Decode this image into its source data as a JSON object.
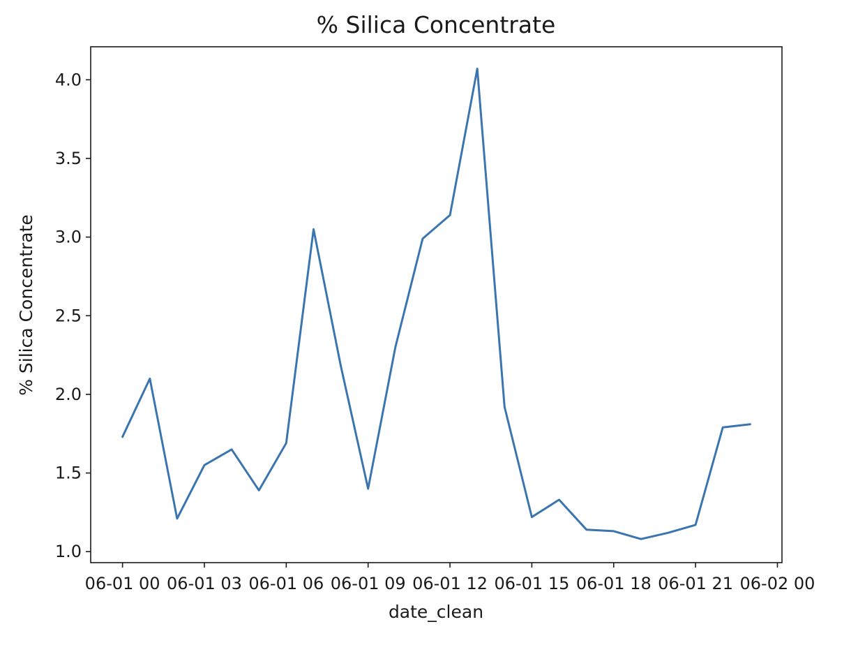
{
  "chart_data": {
    "type": "line",
    "title": "% Silica Concentrate",
    "xlabel": "date_clean",
    "ylabel": "% Silica Concentrate",
    "x_tick_labels": [
      "06-01 00",
      "06-01 03",
      "06-01 06",
      "06-01 09",
      "06-01 12",
      "06-01 15",
      "06-01 18",
      "06-01 21",
      "06-02 00"
    ],
    "y_ticks": [
      1.0,
      1.5,
      2.0,
      2.5,
      3.0,
      3.5,
      4.0
    ],
    "y_tick_labels": [
      "1.0",
      "1.5",
      "2.0",
      "2.5",
      "3.0",
      "3.5",
      "4.0"
    ],
    "ylim": [
      0.93,
      4.21
    ],
    "xlim": [
      "2017-06-01 T-01:10",
      "2017-06-02 T00:10"
    ],
    "grid": false,
    "series": [
      {
        "color": "#3b75af",
        "x": [
          "06-01 00",
          "06-01 01",
          "06-01 02",
          "06-01 03",
          "06-01 04",
          "06-01 05",
          "06-01 06",
          "06-01 07",
          "06-01 08",
          "06-01 09",
          "06-01 10",
          "06-01 11",
          "06-01 12",
          "06-01 13",
          "06-01 14",
          "06-01 15",
          "06-01 16",
          "06-01 17",
          "06-01 18",
          "06-01 19",
          "06-01 20",
          "06-01 21",
          "06-01 22",
          "06-01 23"
        ],
        "values": [
          1.73,
          2.1,
          1.21,
          1.55,
          1.65,
          1.39,
          1.69,
          3.05,
          2.18,
          1.4,
          2.3,
          2.99,
          3.14,
          4.07,
          1.92,
          1.22,
          1.33,
          1.14,
          1.13,
          1.08,
          1.12,
          1.17,
          1.79,
          1.81
        ]
      }
    ]
  }
}
